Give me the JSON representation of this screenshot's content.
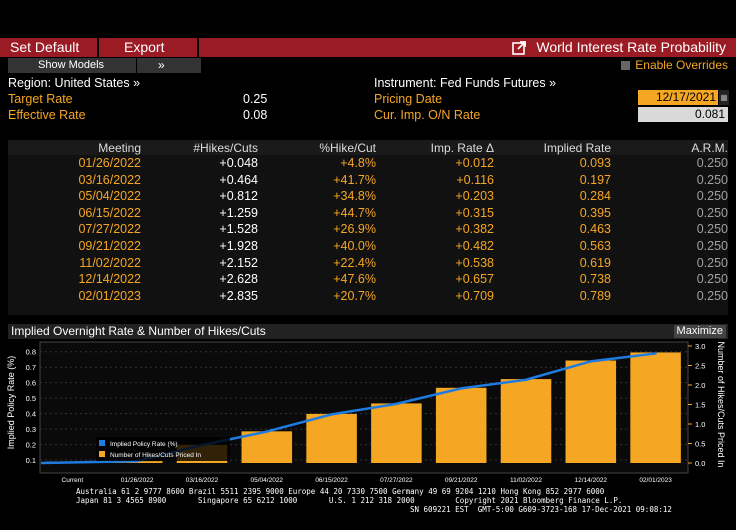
{
  "toolbar": {
    "set_default": "Set Default",
    "export": "Export"
  },
  "window": {
    "title": "World Interest Rate Probability"
  },
  "show_models": "Show Models",
  "show_models_arrow": "»",
  "enable_overrides": "Enable Overrides",
  "left": {
    "region": "Region: United States »",
    "target_label": "Target Rate",
    "target_value": "0.25",
    "effective_label": "Effective Rate",
    "effective_value": "0.08"
  },
  "right": {
    "instrument": "Instrument: Fed Funds Futures »",
    "pricing_label": "Pricing Date",
    "pricing_value": "12/17/2021",
    "cur_label": "Cur. Imp. O/N Rate",
    "cur_value": "0.081"
  },
  "table": {
    "headers": [
      "Meeting",
      "#Hikes/Cuts",
      "%Hike/Cut",
      "Imp. Rate Δ",
      "Implied Rate",
      "A.R.M."
    ],
    "rows": [
      [
        "01/26/2022",
        "+0.048",
        "+4.8%",
        "+0.012",
        "0.093",
        "0.250"
      ],
      [
        "03/16/2022",
        "+0.464",
        "+41.7%",
        "+0.116",
        "0.197",
        "0.250"
      ],
      [
        "05/04/2022",
        "+0.812",
        "+34.8%",
        "+0.203",
        "0.284",
        "0.250"
      ],
      [
        "06/15/2022",
        "+1.259",
        "+44.7%",
        "+0.315",
        "0.395",
        "0.250"
      ],
      [
        "07/27/2022",
        "+1.528",
        "+26.9%",
        "+0.382",
        "0.463",
        "0.250"
      ],
      [
        "09/21/2022",
        "+1.928",
        "+40.0%",
        "+0.482",
        "0.563",
        "0.250"
      ],
      [
        "11/02/2022",
        "+2.152",
        "+22.4%",
        "+0.538",
        "0.619",
        "0.250"
      ],
      [
        "12/14/2022",
        "+2.628",
        "+47.6%",
        "+0.657",
        "0.738",
        "0.250"
      ],
      [
        "02/01/2023",
        "+2.835",
        "+20.7%",
        "+0.709",
        "0.789",
        "0.250"
      ]
    ]
  },
  "chart_header": {
    "title": "Implied Overnight Rate & Number of Hikes/Cuts",
    "maximize": "Maximize"
  },
  "chart_data": {
    "type": "bar",
    "categories": [
      "Current",
      "01/26/2022",
      "03/16/2022",
      "05/04/2022",
      "06/15/2022",
      "07/27/2022",
      "09/21/2022",
      "11/02/2022",
      "12/14/2022",
      "02/01/2023"
    ],
    "series": [
      {
        "name": "Implied Policy Rate (%)",
        "type": "line",
        "color": "#1e7be0",
        "values": [
          0.081,
          0.093,
          0.197,
          0.284,
          0.395,
          0.463,
          0.563,
          0.619,
          0.738,
          0.789
        ]
      },
      {
        "name": "Number of Hikes/Cuts Priced In",
        "type": "bar",
        "color": "#f5a623",
        "values": [
          0,
          0.048,
          0.464,
          0.812,
          1.259,
          1.528,
          1.928,
          2.152,
          2.628,
          2.835
        ]
      }
    ],
    "ylabel_left": "Implied Policy Rate (%)",
    "ylabel_right": "Number of Hikes/Cuts Priced In",
    "yticks_left": [
      "0.1",
      "0.2",
      "0.3",
      "0.4",
      "0.5",
      "0.6",
      "0.7",
      "0.8"
    ],
    "yticks_right": [
      "0.0",
      "0.5",
      "1.0",
      "1.5",
      "2.0",
      "2.5",
      "3.0"
    ],
    "ylim_left": [
      0.081,
      0.85
    ],
    "ylim_right": [
      0,
      3.0
    ],
    "legend_position": "bottom-left"
  },
  "footer": {
    "line1": "Australia 61 2 9777 8600 Brazil 5511 2395 9000 Europe 44 20 7330 7500 Germany 49 69 9204 1210 Hong Kong 852 2977 6000",
    "line2": "Japan 81 3 4565 8900       Singapore 65 6212 1000       U.S. 1 212 318 2000         Copyright 2021 Bloomberg Finance L.P.",
    "line3": "SN 609221 EST  GMT-5:00 G609-3723-168 17-Dec-2021 09:08:12"
  }
}
